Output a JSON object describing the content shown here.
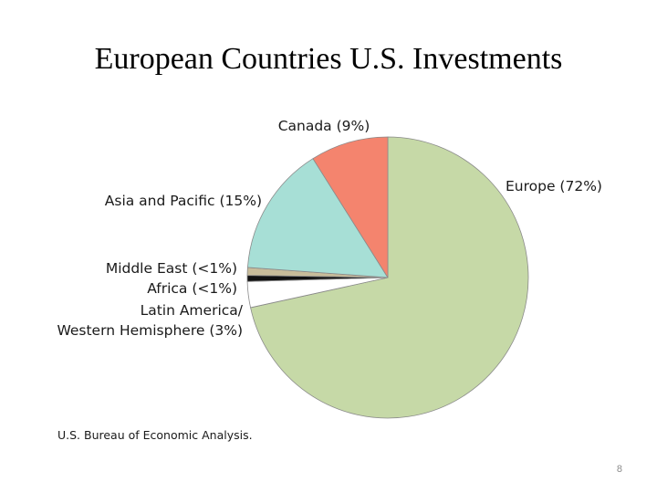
{
  "slide": {
    "title": "European Countries U.S. Investments",
    "source": "U.S. Bureau of Economic Analysis.",
    "page_number": "8"
  },
  "chart_data": {
    "type": "pie",
    "start_angle_deg": 0,
    "direction": "clockwise",
    "slices": [
      {
        "name": "Europe",
        "value": 72,
        "label_lines": [
          "Europe (72%)"
        ],
        "color": "#c6d9a7"
      },
      {
        "name": "Latin America/ Western Hemisphere",
        "value": 3,
        "label_lines": [
          "Latin America/",
          "Western Hemisphere (3%)"
        ],
        "color": "#ffffff"
      },
      {
        "name": "Africa",
        "value": 0.7,
        "label_lines": [
          "Africa (<1%)"
        ],
        "color": "#111111"
      },
      {
        "name": "Middle East",
        "value": 0.9,
        "label_lines": [
          "Middle East (<1%)"
        ],
        "color": "#c8bc9a"
      },
      {
        "name": "Asia and Pacific",
        "value": 15,
        "label_lines": [
          "Asia and Pacific (15%)"
        ],
        "color": "#a7dfd6"
      },
      {
        "name": "Canada",
        "value": 9,
        "label_lines": [
          "Canada (9%)"
        ],
        "color": "#f4846e"
      }
    ],
    "slice_edge_color": "#8a8a8a"
  }
}
